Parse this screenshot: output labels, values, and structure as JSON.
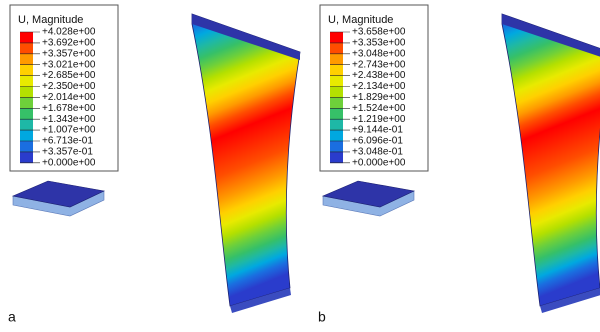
{
  "legend_colors": [
    "#ff0000",
    "#ff4d00",
    "#ff9a00",
    "#ffd000",
    "#e8ea00",
    "#b4e000",
    "#6ed03a",
    "#36c068",
    "#1eb8a6",
    "#00a8e0",
    "#1a6ee0",
    "#2a3ccc"
  ],
  "panels": [
    {
      "legend_title": "U, Magnitude",
      "labels": [
        "+4.028e+00",
        "+3.692e+00",
        "+3.357e+00",
        "+3.021e+00",
        "+2.685e+00",
        "+2.350e+00",
        "+2.014e+00",
        "+1.678e+00",
        "+1.343e+00",
        "+1.007e+00",
        "+6.713e-01",
        "+3.357e-01",
        "+0.000e+00"
      ],
      "caption": "a"
    },
    {
      "legend_title": "U, Magnitude",
      "labels": [
        "+3.658e+00",
        "+3.353e+00",
        "+3.048e+00",
        "+2.743e+00",
        "+2.438e+00",
        "+2.134e+00",
        "+1.829e+00",
        "+1.524e+00",
        "+1.219e+00",
        "+9.144e-01",
        "+6.096e-01",
        "+3.048e-01",
        "+0.000e+00"
      ],
      "caption": "b"
    }
  ]
}
